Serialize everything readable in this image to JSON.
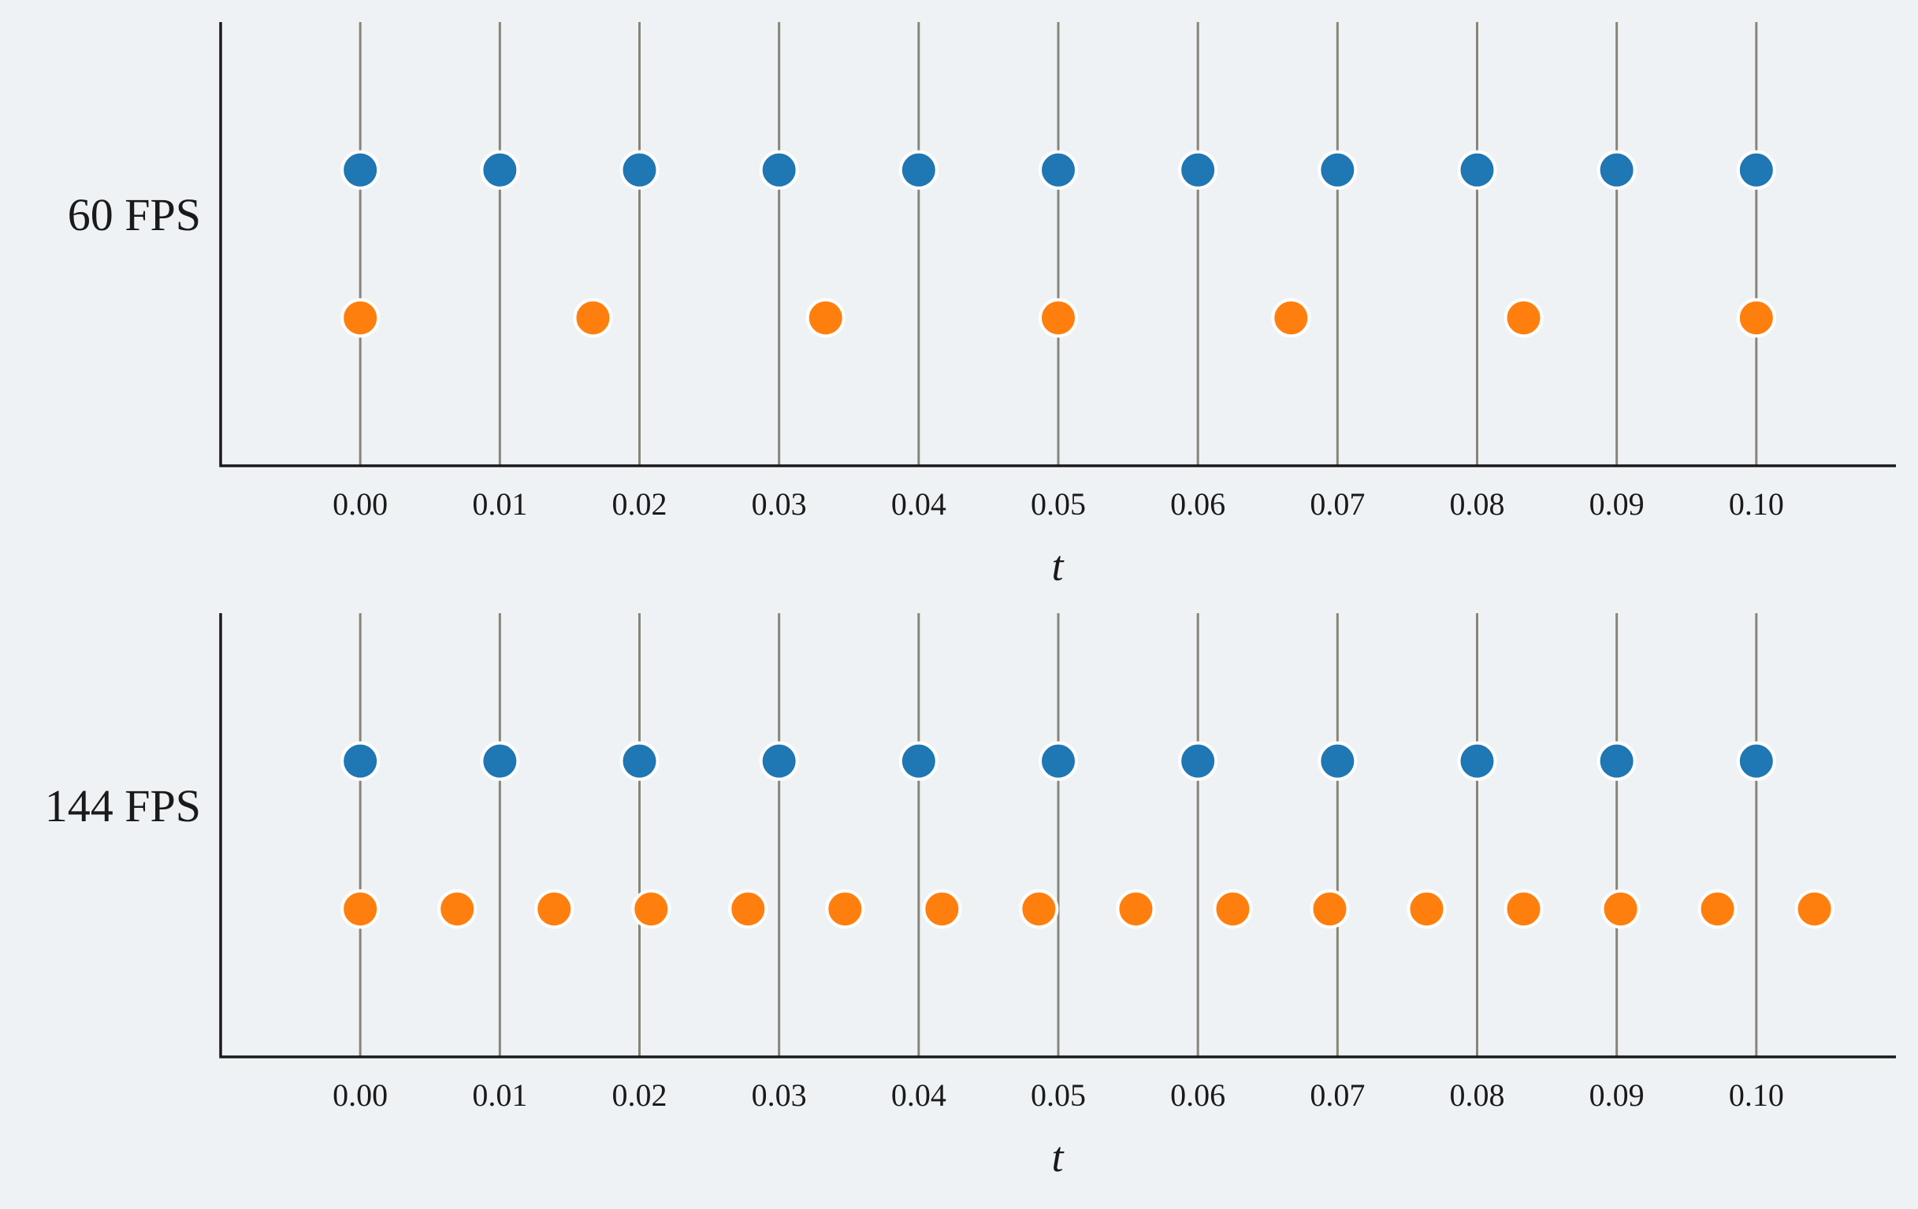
{
  "colors": {
    "background": "#eff2f5",
    "axis": "#1a1a1a",
    "gridline": "#878578",
    "tick_series": "#1f77b4",
    "frame_series": "#ff7f0e",
    "marker_edge": "#ffffff"
  },
  "chart_data": [
    {
      "type": "scatter",
      "row_label": "60 FPS",
      "xlabel": "t",
      "xlim": [
        -0.01,
        0.11
      ],
      "xticks": [
        "0.00",
        "0.01",
        "0.02",
        "0.03",
        "0.04",
        "0.05",
        "0.06",
        "0.07",
        "0.08",
        "0.09",
        "0.10"
      ],
      "ylim": [
        0,
        3
      ],
      "grid": "vertical lines at x ticks",
      "series": [
        {
          "color": "#1f77b4",
          "y": 2,
          "x": [
            0.0,
            0.01,
            0.02,
            0.03,
            0.04,
            0.05,
            0.06,
            0.07,
            0.08,
            0.09,
            0.1
          ]
        },
        {
          "color": "#ff7f0e",
          "y": 1,
          "x": [
            0.0,
            0.016667,
            0.033333,
            0.05,
            0.066667,
            0.083333,
            0.1
          ]
        }
      ]
    },
    {
      "type": "scatter",
      "row_label": "144 FPS",
      "xlabel": "t",
      "xlim": [
        -0.01,
        0.11
      ],
      "xticks": [
        "0.00",
        "0.01",
        "0.02",
        "0.03",
        "0.04",
        "0.05",
        "0.06",
        "0.07",
        "0.08",
        "0.09",
        "0.10"
      ],
      "ylim": [
        0,
        3
      ],
      "grid": "vertical lines at x ticks",
      "series": [
        {
          "color": "#1f77b4",
          "y": 2,
          "x": [
            0.0,
            0.01,
            0.02,
            0.03,
            0.04,
            0.05,
            0.06,
            0.07,
            0.08,
            0.09,
            0.1
          ]
        },
        {
          "color": "#ff7f0e",
          "y": 1,
          "x": [
            0.0,
            0.006944,
            0.013889,
            0.020833,
            0.027778,
            0.034722,
            0.041667,
            0.048611,
            0.055556,
            0.0625,
            0.069444,
            0.076389,
            0.083333,
            0.090278,
            0.097222,
            0.104167
          ]
        }
      ]
    }
  ]
}
